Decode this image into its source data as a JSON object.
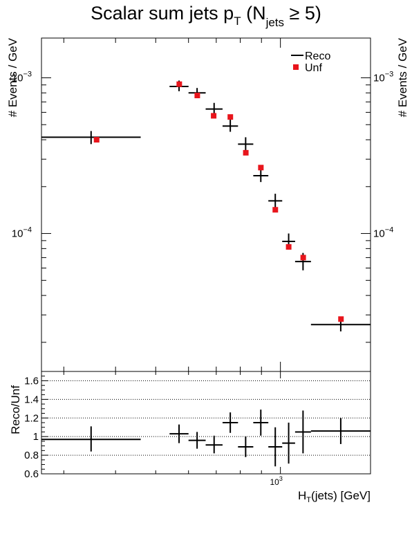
{
  "chart_data": [
    {
      "type": "scatter",
      "panel": "main",
      "title_parts": [
        "Scalar sum jets p",
        "T",
        " (N",
        "jets",
        " ≥ 5)"
      ],
      "ylabel": "# Events / GeV",
      "yscale": "log",
      "ylim": [
        1.3e-05,
        0.0018
      ],
      "xscale": "log",
      "xlim": [
        265,
        1650
      ],
      "legend": {
        "placement": "top-right",
        "entries": [
          {
            "name": "Reco",
            "style": "line",
            "color": "#000000"
          },
          {
            "name": "Unf",
            "style": "square",
            "color": "#e8151c"
          }
        ]
      },
      "y_tick_labels": [
        {
          "value": 0.001,
          "base": "10",
          "exp": "−3"
        },
        {
          "value": 0.0001,
          "base": "10",
          "exp": "−4"
        }
      ],
      "series": [
        {
          "name": "Reco",
          "bins": [
            {
              "xlo": 265,
              "xhi": 460,
              "y": 0.000415,
              "ylo": 0.000375,
              "yhi": 0.000455
            },
            {
              "xlo": 540,
              "xhi": 600,
              "y": 0.00088,
              "ylo": 0.00082,
              "yhi": 0.00096
            },
            {
              "xlo": 600,
              "xhi": 660,
              "y": 0.0008,
              "ylo": 0.00074,
              "yhi": 0.00086
            },
            {
              "xlo": 660,
              "xhi": 725,
              "y": 0.00063,
              "ylo": 0.00058,
              "yhi": 0.00069
            },
            {
              "xlo": 725,
              "xhi": 790,
              "y": 0.00049,
              "ylo": 0.00045,
              "yhi": 0.00054
            },
            {
              "xlo": 790,
              "xhi": 860,
              "y": 0.000375,
              "ylo": 0.00034,
              "yhi": 0.000415
            },
            {
              "xlo": 860,
              "xhi": 935,
              "y": 0.000235,
              "ylo": 0.000214,
              "yhi": 0.000258
            },
            {
              "xlo": 935,
              "xhi": 1010,
              "y": 0.000162,
              "ylo": 0.000145,
              "yhi": 0.00018
            },
            {
              "xlo": 1010,
              "xhi": 1085,
              "y": 8.9e-05,
              "ylo": 7.9e-05,
              "yhi": 0.0001
            },
            {
              "xlo": 1085,
              "xhi": 1185,
              "y": 6.6e-05,
              "ylo": 5.8e-05,
              "yhi": 7.5e-05
            },
            {
              "xlo": 1185,
              "xhi": 1650,
              "y": 2.6e-05,
              "ylo": 2.35e-05,
              "yhi": 2.87e-05
            }
          ]
        },
        {
          "name": "Unf",
          "x": [
            360,
            570,
            630,
            690,
            757,
            825,
            897,
            972,
            1047,
            1135,
            1400
          ],
          "y": [
            0.0004,
            0.00091,
            0.00077,
            0.00057,
            0.00056,
            0.00033,
            0.000265,
            0.000142,
            8.2e-05,
            7e-05,
            2.82e-05
          ]
        }
      ]
    },
    {
      "type": "scatter",
      "panel": "ratio",
      "ylabel": "Reco/Unf",
      "xlabel_parts": [
        "H",
        "T",
        "(jets) [GeV]"
      ],
      "xscale": "log",
      "xlim": [
        265,
        1650
      ],
      "ylim": [
        0.6,
        1.7
      ],
      "y_ticks": [
        0.6,
        0.8,
        1,
        1.2,
        1.4,
        1.6
      ],
      "y_tick_labels": [
        "0.6",
        "0.8",
        "1",
        "1.2",
        "1.4",
        "1.6"
      ],
      "grid": true,
      "x_tick_label": {
        "value": 1000,
        "base": "10",
        "exp": "3"
      },
      "series": [
        {
          "name": "Reco/Unf",
          "bins": [
            {
              "xlo": 265,
              "xhi": 460,
              "y": 0.97,
              "ylo": 0.84,
              "yhi": 1.11
            },
            {
              "xlo": 540,
              "xhi": 600,
              "y": 1.03,
              "ylo": 0.93,
              "yhi": 1.13
            },
            {
              "xlo": 600,
              "xhi": 660,
              "y": 0.96,
              "ylo": 0.87,
              "yhi": 1.05
            },
            {
              "xlo": 660,
              "xhi": 725,
              "y": 0.91,
              "ylo": 0.82,
              "yhi": 1.01
            },
            {
              "xlo": 725,
              "xhi": 790,
              "y": 1.15,
              "ylo": 1.04,
              "yhi": 1.26
            },
            {
              "xlo": 790,
              "xhi": 860,
              "y": 0.89,
              "ylo": 0.78,
              "yhi": 1.0
            },
            {
              "xlo": 860,
              "xhi": 935,
              "y": 1.15,
              "ylo": 1.01,
              "yhi": 1.29
            },
            {
              "xlo": 935,
              "xhi": 1010,
              "y": 0.89,
              "ylo": 0.68,
              "yhi": 1.1
            },
            {
              "xlo": 1010,
              "xhi": 1085,
              "y": 0.93,
              "ylo": 0.71,
              "yhi": 1.15
            },
            {
              "xlo": 1085,
              "xhi": 1185,
              "y": 1.05,
              "ylo": 0.82,
              "yhi": 1.28
            },
            {
              "xlo": 1185,
              "xhi": 1650,
              "y": 1.06,
              "ylo": 0.92,
              "yhi": 1.2
            }
          ]
        }
      ]
    }
  ]
}
